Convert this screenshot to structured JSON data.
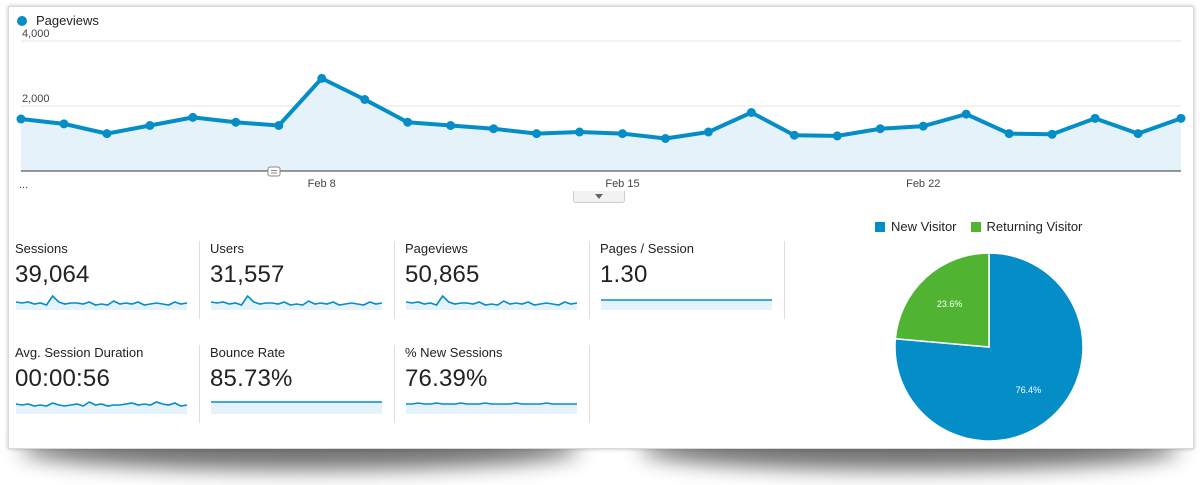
{
  "chart_data": [
    {
      "type": "area",
      "series": [
        {
          "name": "Pageviews",
          "color": "#058dc7",
          "values": [
            1600,
            1450,
            1150,
            1400,
            1650,
            1500,
            1400,
            2850,
            2200,
            1500,
            1400,
            1300,
            1150,
            1200,
            1150,
            1000,
            1200,
            1800,
            1100,
            1080,
            1300,
            1380,
            1750,
            1150,
            1130,
            1620,
            1150,
            1620
          ]
        }
      ],
      "ylim": [
        0,
        4000
      ],
      "yticks": [
        {
          "value": 4000,
          "label": "4,000"
        },
        {
          "value": 2000,
          "label": "2,000"
        }
      ],
      "xticks": [
        {
          "index": 7,
          "label": "Feb 8"
        },
        {
          "index": 14,
          "label": "Feb 15"
        },
        {
          "index": 21,
          "label": "Feb 22"
        }
      ],
      "x_start_label": "...",
      "grid": true,
      "legend": "top-left"
    },
    {
      "type": "pie",
      "legend": "top",
      "slices": [
        {
          "label": "New Visitor",
          "value": 76.4,
          "label_text": "76.4%",
          "color": "#058dc7"
        },
        {
          "label": "Returning Visitor",
          "value": 23.6,
          "label_text": "23.6%",
          "color": "#50b432"
        }
      ]
    }
  ],
  "metrics": [
    {
      "label": "Sessions",
      "value": "39,064",
      "spark": [
        8,
        7,
        8,
        6,
        7,
        5,
        14,
        8,
        6,
        7,
        7,
        6,
        8,
        5,
        6,
        5,
        9,
        6,
        7,
        6,
        8,
        5,
        6,
        7,
        6,
        5,
        8,
        6,
        7
      ]
    },
    {
      "label": "Users",
      "value": "31,557",
      "spark": [
        8,
        7,
        8,
        6,
        7,
        5,
        14,
        8,
        6,
        7,
        7,
        6,
        8,
        5,
        6,
        5,
        9,
        6,
        7,
        6,
        8,
        5,
        6,
        7,
        6,
        5,
        8,
        6,
        7
      ]
    },
    {
      "label": "Pageviews",
      "value": "50,865",
      "spark": [
        8,
        7,
        8,
        6,
        7,
        5,
        14,
        8,
        6,
        7,
        7,
        6,
        8,
        5,
        6,
        5,
        9,
        6,
        7,
        6,
        8,
        5,
        6,
        7,
        6,
        5,
        8,
        6,
        7
      ]
    },
    {
      "label": "Pages / Session",
      "value": "1.30",
      "spark": [
        10,
        10,
        10,
        10,
        10,
        10,
        10,
        10,
        10,
        10,
        10,
        10,
        10,
        10,
        10,
        10,
        10,
        10,
        10,
        10,
        10,
        10,
        10,
        10,
        10,
        10,
        10,
        10,
        10
      ]
    },
    {
      "label": "Avg. Session Duration",
      "value": "00:00:56",
      "spark": [
        10,
        9,
        10,
        8,
        9,
        8,
        11,
        9,
        8,
        9,
        10,
        8,
        12,
        9,
        10,
        8,
        9,
        9,
        10,
        11,
        9,
        10,
        9,
        12,
        10,
        9,
        11,
        8,
        9
      ]
    },
    {
      "label": "Bounce Rate",
      "value": "85.73%",
      "spark": [
        12,
        12,
        12,
        12,
        12,
        12,
        12,
        12,
        12,
        12,
        12,
        12,
        12,
        12,
        12,
        12,
        12,
        12,
        12,
        12,
        12,
        12,
        12,
        12,
        12,
        12,
        12,
        12,
        12
      ]
    },
    {
      "label": "% New Sessions",
      "value": "76.39%",
      "spark": [
        10,
        10,
        11,
        10,
        10,
        11,
        10,
        10,
        10,
        11,
        10,
        10,
        10,
        11,
        10,
        10,
        10,
        10,
        11,
        10,
        10,
        10,
        10,
        11,
        10,
        10,
        10,
        10,
        10
      ]
    }
  ]
}
